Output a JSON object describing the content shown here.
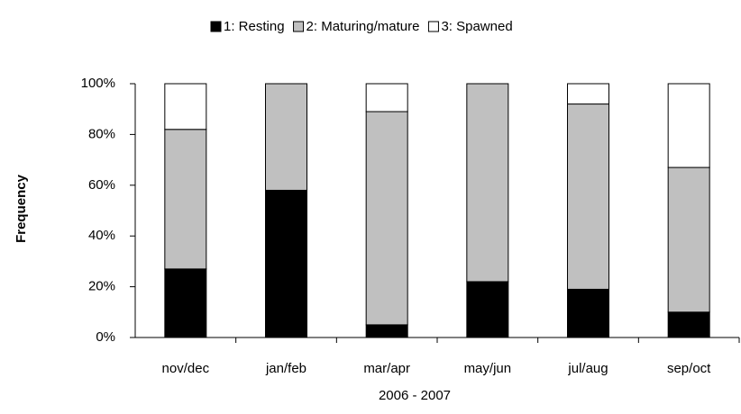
{
  "chart_data": {
    "type": "stacked_bar",
    "categories": [
      "nov/dec",
      "jan/feb",
      "mar/apr",
      "may/jun",
      "jul/aug",
      "sep/oct"
    ],
    "series": [
      {
        "name": "1: Resting",
        "color": "#000000",
        "values": [
          27,
          58,
          5,
          22,
          19,
          10
        ]
      },
      {
        "name": "2: Maturing/mature",
        "color": "#c0c0c0",
        "values": [
          55,
          42,
          84,
          78,
          73,
          57
        ]
      },
      {
        "name": "3: Spawned",
        "color": "#ffffff",
        "values": [
          18,
          0,
          11,
          0,
          8,
          33
        ]
      }
    ],
    "x_label": "2006 - 2007",
    "y_label": "Frequency",
    "ylim": [
      0,
      100
    ],
    "yticks": [
      {
        "value": 0,
        "label": "0%"
      },
      {
        "value": 20,
        "label": "20%"
      },
      {
        "value": 40,
        "label": "40%"
      },
      {
        "value": 60,
        "label": "60%"
      },
      {
        "value": 80,
        "label": "80%"
      },
      {
        "value": 100,
        "label": "100%"
      }
    ],
    "legend": "top"
  }
}
